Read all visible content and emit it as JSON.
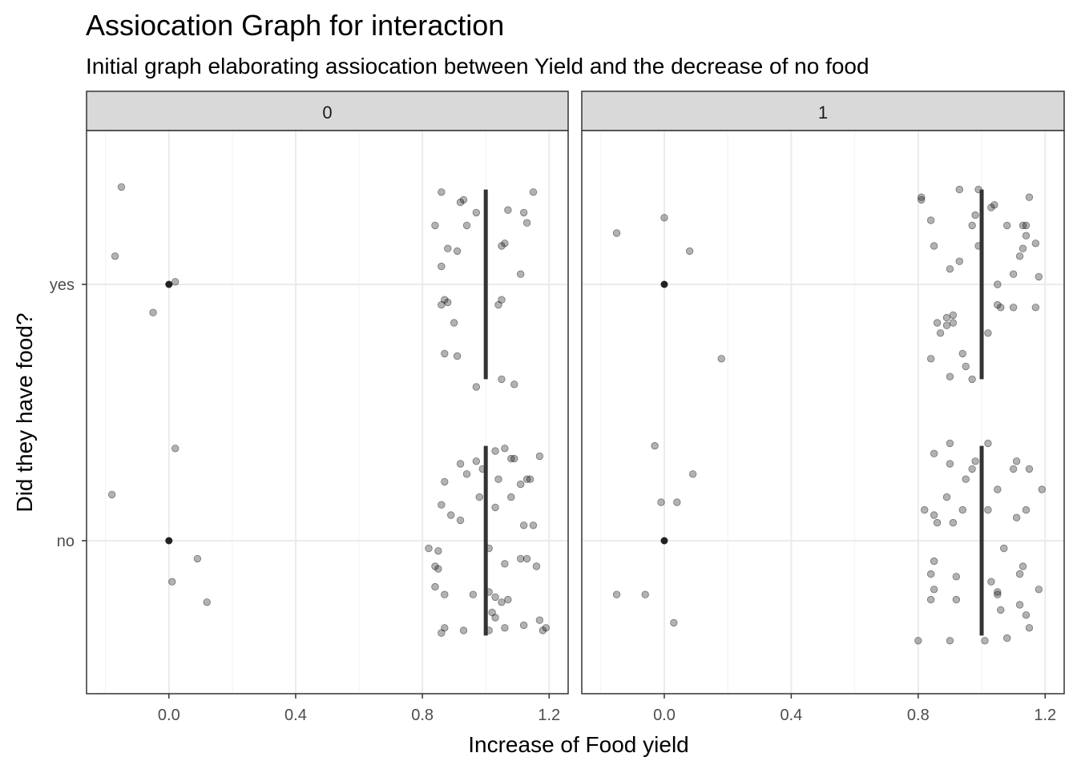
{
  "chart_data": {
    "type": "scatter",
    "title": "Assiocation Graph for interaction",
    "subtitle": "Initial graph elaborating assiocation between Yield and the decrease of no food",
    "xlabel": "Increase of Food yield",
    "ylabel": "Did they have food?",
    "xlim": [
      -0.26,
      1.26
    ],
    "x_ticks": [
      0.0,
      0.4,
      0.8,
      1.2
    ],
    "x_tick_labels": [
      "0.0",
      "0.4",
      "0.8",
      "1.2"
    ],
    "y_categories": [
      "no",
      "yes"
    ],
    "grid": true,
    "facets": [
      {
        "label": "0",
        "means": [
          {
            "category": "no",
            "x": 0.0
          },
          {
            "category": "yes",
            "x": 0.0
          }
        ],
        "ranges": [
          {
            "category": "no",
            "x": 1.0,
            "low": 0.63,
            "high": 1.37
          },
          {
            "category": "yes",
            "x": 1.0,
            "low": 0.63,
            "high": 1.37
          }
        ],
        "points": [
          [
            -0.05,
            "yes",
            0.11
          ],
          [
            0.02,
            "yes",
            -0.01
          ],
          [
            -0.17,
            "yes",
            -0.11
          ],
          [
            -0.15,
            "yes",
            -0.38
          ],
          [
            0.97,
            "yes",
            0.4
          ],
          [
            1.09,
            "yes",
            0.39
          ],
          [
            1.05,
            "yes",
            0.37
          ],
          [
            0.87,
            "yes",
            0.27
          ],
          [
            0.91,
            "yes",
            0.28
          ],
          [
            0.9,
            "yes",
            0.15
          ],
          [
            0.86,
            "yes",
            0.08
          ],
          [
            0.88,
            "yes",
            0.07
          ],
          [
            0.87,
            "yes",
            0.06
          ],
          [
            1.04,
            "yes",
            0.08
          ],
          [
            1.05,
            "yes",
            0.06
          ],
          [
            0.86,
            "yes",
            -0.07
          ],
          [
            1.11,
            "yes",
            -0.04
          ],
          [
            0.88,
            "yes",
            -0.14
          ],
          [
            0.91,
            "yes",
            -0.13
          ],
          [
            1.05,
            "yes",
            -0.15
          ],
          [
            1.06,
            "yes",
            -0.16
          ],
          [
            0.84,
            "yes",
            -0.23
          ],
          [
            0.94,
            "yes",
            -0.23
          ],
          [
            1.13,
            "yes",
            -0.24
          ],
          [
            0.97,
            "yes",
            -0.28
          ],
          [
            1.07,
            "yes",
            -0.29
          ],
          [
            1.12,
            "yes",
            -0.28
          ],
          [
            0.92,
            "yes",
            -0.32
          ],
          [
            0.93,
            "yes",
            -0.33
          ],
          [
            0.86,
            "yes",
            -0.36
          ],
          [
            1.15,
            "yes",
            -0.36
          ],
          [
            0.12,
            "no",
            0.24
          ],
          [
            0.01,
            "no",
            0.16
          ],
          [
            0.09,
            "no",
            0.07
          ],
          [
            -0.18,
            "no",
            -0.18
          ],
          [
            0.02,
            "no",
            -0.36
          ],
          [
            0.86,
            "no",
            0.36
          ],
          [
            0.87,
            "no",
            0.34
          ],
          [
            0.93,
            "no",
            0.35
          ],
          [
            1.01,
            "no",
            0.35
          ],
          [
            1.06,
            "no",
            0.34
          ],
          [
            1.12,
            "no",
            0.33
          ],
          [
            1.19,
            "no",
            0.34
          ],
          [
            1.18,
            "no",
            0.35
          ],
          [
            1.17,
            "no",
            0.31
          ],
          [
            1.03,
            "no",
            0.3
          ],
          [
            1.02,
            "no",
            0.28
          ],
          [
            1.05,
            "no",
            0.24
          ],
          [
            1.07,
            "no",
            0.23
          ],
          [
            0.87,
            "no",
            0.21
          ],
          [
            0.96,
            "no",
            0.21
          ],
          [
            0.84,
            "no",
            0.18
          ],
          [
            1.01,
            "no",
            0.2
          ],
          [
            1.03,
            "no",
            0.22
          ],
          [
            0.85,
            "no",
            0.11
          ],
          [
            0.84,
            "no",
            0.1
          ],
          [
            1.06,
            "no",
            0.09
          ],
          [
            1.16,
            "no",
            0.1
          ],
          [
            1.11,
            "no",
            0.07
          ],
          [
            1.13,
            "no",
            0.07
          ],
          [
            0.85,
            "no",
            0.04
          ],
          [
            0.82,
            "no",
            0.03
          ],
          [
            1.01,
            "no",
            0.03
          ],
          [
            1.12,
            "no",
            -0.06
          ],
          [
            1.15,
            "no",
            -0.06
          ],
          [
            0.92,
            "no",
            -0.08
          ],
          [
            0.89,
            "no",
            -0.1
          ],
          [
            0.86,
            "no",
            -0.14
          ],
          [
            0.98,
            "no",
            -0.17
          ],
          [
            1.03,
            "no",
            -0.13
          ],
          [
            1.08,
            "no",
            -0.17
          ],
          [
            1.11,
            "no",
            -0.22
          ],
          [
            0.87,
            "no",
            -0.23
          ],
          [
            0.94,
            "no",
            -0.26
          ],
          [
            1.04,
            "no",
            -0.24
          ],
          [
            0.99,
            "no",
            -0.28
          ],
          [
            1.13,
            "no",
            -0.24
          ],
          [
            1.14,
            "no",
            -0.24
          ],
          [
            1.17,
            "no",
            -0.33
          ],
          [
            0.97,
            "no",
            -0.31
          ],
          [
            0.92,
            "no",
            -0.3
          ],
          [
            1.03,
            "no",
            -0.35
          ],
          [
            1.06,
            "no",
            -0.36
          ],
          [
            1.09,
            "no",
            -0.32
          ],
          [
            1.08,
            "no",
            -0.32
          ]
        ]
      },
      {
        "label": "1",
        "means": [
          {
            "category": "no",
            "x": 0.0
          },
          {
            "category": "yes",
            "x": 0.0
          }
        ],
        "ranges": [
          {
            "category": "no",
            "x": 1.0,
            "low": 0.63,
            "high": 1.37
          },
          {
            "category": "yes",
            "x": 1.0,
            "low": 0.63,
            "high": 1.37
          }
        ],
        "points": [
          [
            0.18,
            "yes",
            0.29
          ],
          [
            0.08,
            "yes",
            -0.13
          ],
          [
            -0.15,
            "yes",
            -0.2
          ],
          [
            0.0,
            "yes",
            -0.26
          ],
          [
            0.97,
            "yes",
            0.37
          ],
          [
            0.9,
            "yes",
            0.36
          ],
          [
            0.95,
            "yes",
            0.32
          ],
          [
            0.84,
            "yes",
            0.29
          ],
          [
            0.94,
            "yes",
            0.27
          ],
          [
            0.87,
            "yes",
            0.19
          ],
          [
            0.89,
            "yes",
            0.16
          ],
          [
            0.91,
            "yes",
            0.15
          ],
          [
            1.02,
            "yes",
            0.19
          ],
          [
            0.86,
            "yes",
            0.15
          ],
          [
            0.89,
            "yes",
            0.13
          ],
          [
            0.91,
            "yes",
            0.12
          ],
          [
            1.05,
            "yes",
            0.08
          ],
          [
            1.06,
            "yes",
            0.09
          ],
          [
            1.1,
            "yes",
            0.09
          ],
          [
            1.17,
            "yes",
            0.09
          ],
          [
            1.05,
            "yes",
            0.0
          ],
          [
            1.1,
            "yes",
            -0.04
          ],
          [
            1.18,
            "yes",
            -0.03
          ],
          [
            0.9,
            "yes",
            -0.06
          ],
          [
            0.93,
            "yes",
            -0.09
          ],
          [
            1.12,
            "yes",
            -0.11
          ],
          [
            0.85,
            "yes",
            -0.15
          ],
          [
            0.99,
            "yes",
            -0.15
          ],
          [
            1.13,
            "yes",
            -0.14
          ],
          [
            1.14,
            "yes",
            -0.19
          ],
          [
            1.17,
            "yes",
            -0.16
          ],
          [
            0.97,
            "yes",
            -0.23
          ],
          [
            0.84,
            "yes",
            -0.25
          ],
          [
            1.08,
            "yes",
            -0.23
          ],
          [
            1.13,
            "yes",
            -0.23
          ],
          [
            1.14,
            "yes",
            -0.23
          ],
          [
            0.98,
            "yes",
            -0.27
          ],
          [
            1.03,
            "yes",
            -0.3
          ],
          [
            1.04,
            "yes",
            -0.31
          ],
          [
            0.81,
            "yes",
            -0.33
          ],
          [
            0.81,
            "yes",
            -0.34
          ],
          [
            0.93,
            "yes",
            -0.37
          ],
          [
            0.99,
            "yes",
            -0.37
          ],
          [
            1.15,
            "yes",
            -0.34
          ],
          [
            0.03,
            "no",
            0.32
          ],
          [
            -0.15,
            "no",
            0.21
          ],
          [
            -0.06,
            "no",
            0.21
          ],
          [
            -0.01,
            "no",
            -0.15
          ],
          [
            0.04,
            "no",
            -0.15
          ],
          [
            0.09,
            "no",
            -0.26
          ],
          [
            -0.03,
            "no",
            -0.37
          ],
          [
            0.8,
            "no",
            0.39
          ],
          [
            0.9,
            "no",
            0.39
          ],
          [
            1.01,
            "no",
            0.39
          ],
          [
            1.08,
            "no",
            0.38
          ],
          [
            1.15,
            "no",
            0.34
          ],
          [
            1.14,
            "no",
            0.29
          ],
          [
            1.06,
            "no",
            0.27
          ],
          [
            1.12,
            "no",
            0.25
          ],
          [
            0.84,
            "no",
            0.23
          ],
          [
            0.92,
            "no",
            0.23
          ],
          [
            1.05,
            "no",
            0.21
          ],
          [
            1.05,
            "no",
            0.2
          ],
          [
            1.18,
            "no",
            0.19
          ],
          [
            0.85,
            "no",
            0.19
          ],
          [
            1.03,
            "no",
            0.16
          ],
          [
            0.92,
            "no",
            0.14
          ],
          [
            0.84,
            "no",
            0.13
          ],
          [
            1.12,
            "no",
            0.13
          ],
          [
            1.13,
            "no",
            0.1
          ],
          [
            0.85,
            "no",
            0.08
          ],
          [
            1.07,
            "no",
            0.03
          ],
          [
            0.86,
            "no",
            -0.07
          ],
          [
            0.91,
            "no",
            -0.07
          ],
          [
            1.11,
            "no",
            -0.09
          ],
          [
            0.85,
            "no",
            -0.1
          ],
          [
            0.82,
            "no",
            -0.12
          ],
          [
            1.02,
            "no",
            -0.12
          ],
          [
            0.94,
            "no",
            -0.12
          ],
          [
            1.14,
            "no",
            -0.12
          ],
          [
            0.89,
            "no",
            -0.17
          ],
          [
            1.05,
            "no",
            -0.2
          ],
          [
            1.19,
            "no",
            -0.2
          ],
          [
            0.95,
            "no",
            -0.24
          ],
          [
            0.97,
            "no",
            -0.28
          ],
          [
            1.1,
            "no",
            -0.28
          ],
          [
            1.15,
            "no",
            -0.28
          ],
          [
            0.9,
            "no",
            -0.3
          ],
          [
            0.98,
            "no",
            -0.31
          ],
          [
            1.11,
            "no",
            -0.31
          ],
          [
            0.85,
            "no",
            -0.34
          ],
          [
            0.9,
            "no",
            -0.38
          ],
          [
            1.02,
            "no",
            -0.38
          ]
        ]
      }
    ]
  }
}
